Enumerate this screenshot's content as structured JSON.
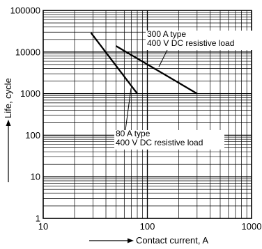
{
  "chart_data": {
    "type": "line",
    "xlabel": "Contact current, A",
    "ylabel": "Life, cycle",
    "x_scale": "log",
    "y_scale": "log",
    "xlim": [
      10,
      1000
    ],
    "ylim": [
      1,
      100000
    ],
    "grid": true,
    "x_tick_labels": [
      "10",
      "100",
      "1000"
    ],
    "y_tick_labels": [
      "1",
      "10",
      "100",
      "1000",
      "10000",
      "100000"
    ],
    "series": [
      {
        "name": "80 A type 400 V DC resistive load",
        "points": [
          [
            28.7,
            29000
          ],
          [
            80,
            1000
          ]
        ]
      },
      {
        "name": "300 A type 400 V DC resistive load",
        "points": [
          [
            50,
            14000
          ],
          [
            300,
            1000
          ]
        ]
      }
    ],
    "annotations": [
      {
        "series": 1,
        "lines": [
          "300 A type",
          "400 V DC resistive load"
        ]
      },
      {
        "series": 0,
        "lines": [
          "80 A type",
          "400 V DC resistive load"
        ]
      }
    ]
  }
}
